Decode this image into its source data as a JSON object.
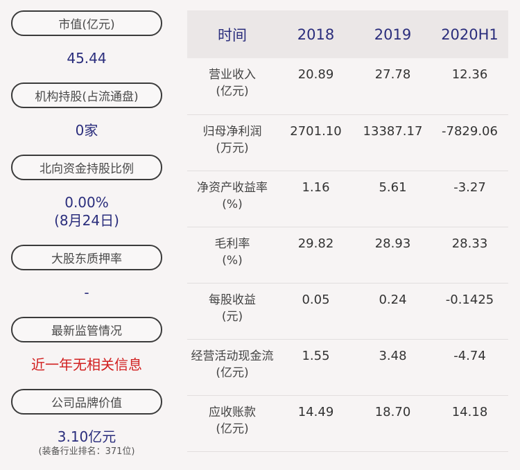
{
  "left": {
    "items": [
      {
        "label": "市值(亿元)",
        "value": "45.44"
      },
      {
        "label": "机构持股(占流通盘)",
        "value": "0家"
      },
      {
        "label": "北向资金持股比例",
        "value": "0.00%",
        "sub": "(8月24日)"
      },
      {
        "label": "大股东质押率",
        "value": "-"
      },
      {
        "label": "最新监管情况",
        "value": "近一年无相关信息"
      },
      {
        "label": "公司品牌价值",
        "value": "3.10亿元",
        "sub": "(装备行业排名：371位)"
      }
    ]
  },
  "table": {
    "headers": [
      "时间",
      "2018",
      "2019",
      "2020H1"
    ],
    "rows": [
      {
        "metric": "营业收入",
        "unit": "(亿元)",
        "values": [
          "20.89",
          "27.78",
          "12.36"
        ]
      },
      {
        "metric": "归母净利润",
        "unit": "(万元)",
        "values": [
          "2701.10",
          "13387.17",
          "-7829.06"
        ]
      },
      {
        "metric": "净资产收益率",
        "unit": "(%)",
        "values": [
          "1.16",
          "5.61",
          "-3.27"
        ]
      },
      {
        "metric": "毛利率",
        "unit": "(%)",
        "values": [
          "29.82",
          "28.93",
          "28.33"
        ]
      },
      {
        "metric": "每股收益",
        "unit": "(元)",
        "values": [
          "0.05",
          "0.24",
          "-0.1425"
        ]
      },
      {
        "metric": "经营活动现金流",
        "unit": "(亿元)",
        "values": [
          "1.55",
          "3.48",
          "-4.74"
        ]
      },
      {
        "metric": "应收账款",
        "unit": "(亿元)",
        "values": [
          "14.49",
          "18.70",
          "14.18"
        ]
      }
    ]
  },
  "colors": {
    "value_blue": "#2a2d7c",
    "alert_red": "#d11f1f",
    "header_bg": "#ebe7e7",
    "page_bg": "#f7f4f4"
  }
}
